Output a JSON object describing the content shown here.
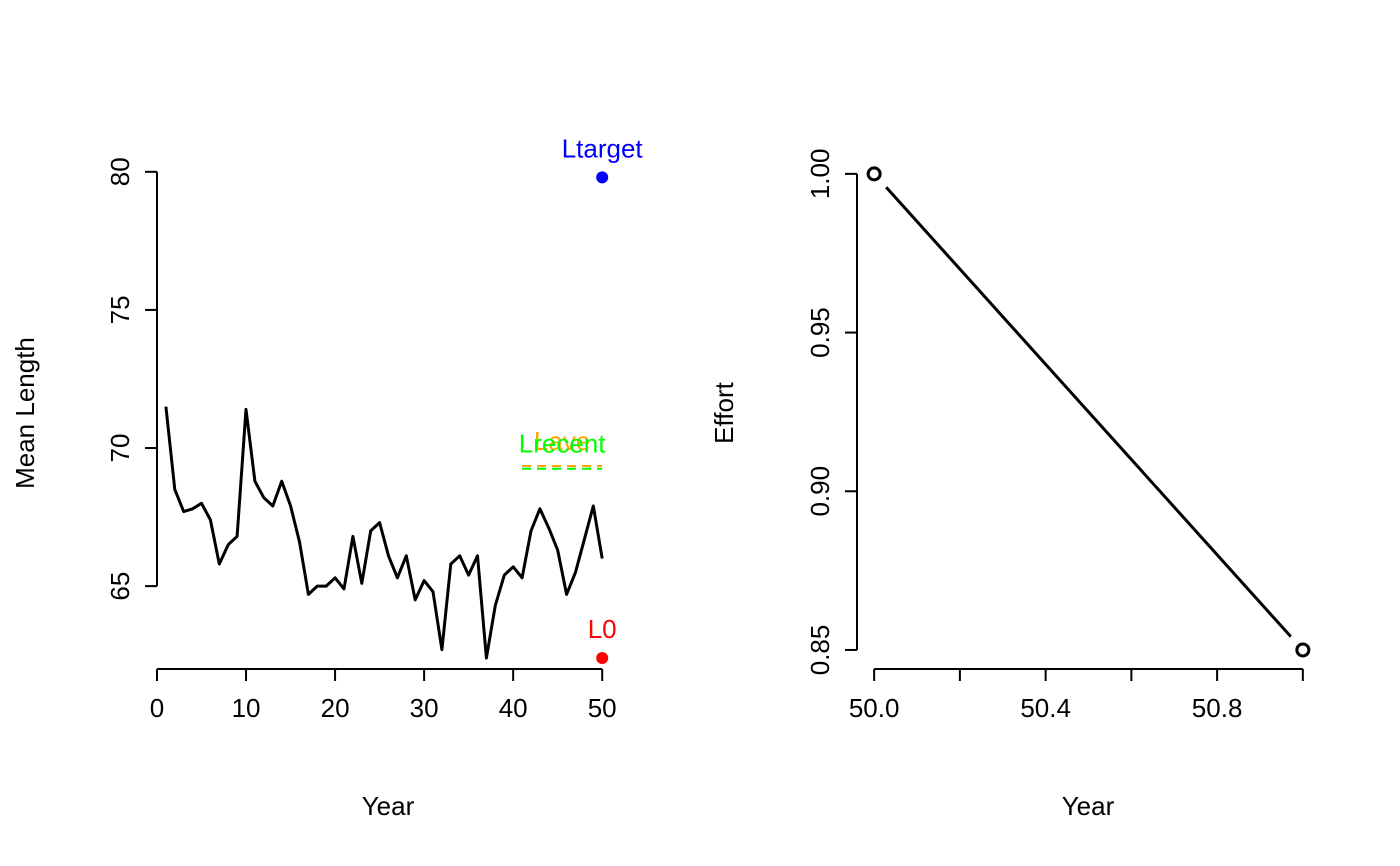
{
  "chart_data": [
    {
      "type": "line",
      "xlabel": "Year",
      "ylabel": "Mean Length",
      "xlim": [
        0,
        52
      ],
      "ylim": [
        62,
        80.5
      ],
      "xticks": [
        0,
        10,
        20,
        30,
        40,
        50
      ],
      "yticks": [
        65,
        70,
        75,
        80
      ],
      "series": [
        {
          "color": "#000000",
          "x": [
            1,
            2,
            3,
            4,
            5,
            6,
            7,
            8,
            9,
            10,
            11,
            12,
            13,
            14,
            15,
            16,
            17,
            18,
            19,
            20,
            21,
            22,
            23,
            24,
            25,
            26,
            27,
            28,
            29,
            30,
            31,
            32,
            33,
            34,
            35,
            36,
            37,
            38,
            39,
            40,
            41,
            42,
            43,
            44,
            45,
            46,
            47,
            48,
            49,
            50
          ],
          "values": [
            71.5,
            68.5,
            67.7,
            67.8,
            68.0,
            67.4,
            65.8,
            66.5,
            66.8,
            71.4,
            68.8,
            68.2,
            67.9,
            68.8,
            67.9,
            66.6,
            64.7,
            65.0,
            65.0,
            65.3,
            64.9,
            66.8,
            65.1,
            67.0,
            67.3,
            66.1,
            65.3,
            66.1,
            64.5,
            65.2,
            64.8,
            62.7,
            65.8,
            66.1,
            65.4,
            66.1,
            62.4,
            64.3,
            65.4,
            65.7,
            65.3,
            67.0,
            67.8,
            67.1,
            66.3,
            64.7,
            65.5,
            66.7,
            67.9,
            66.0
          ]
        }
      ],
      "reference_points": [
        {
          "label": "Ltarget",
          "x": 50,
          "y": 79.8,
          "color": "#0000FF"
        },
        {
          "label": "L0",
          "x": 50,
          "y": 62.4,
          "color": "#FF0000"
        }
      ],
      "reference_lines": [
        {
          "label": "Lave",
          "x_start": 41,
          "x_end": 50,
          "y": 69.35,
          "color": "#FFA500",
          "style": "dashed"
        },
        {
          "label": "Lrecent",
          "x_start": 41,
          "x_end": 50,
          "y": 69.25,
          "color": "#00FF00",
          "style": "dashed"
        }
      ]
    },
    {
      "type": "line",
      "xlabel": "Year",
      "ylabel": "Effort",
      "xlim": [
        49.96,
        51.04
      ],
      "ylim": [
        0.844,
        1.005
      ],
      "xticks": [
        50.0,
        50.2,
        50.4,
        50.6,
        50.8,
        51.0
      ],
      "xtick_labels": [
        "50.0",
        "",
        "50.4",
        "",
        "50.8",
        ""
      ],
      "yticks": [
        0.85,
        0.9,
        0.95,
        1.0
      ],
      "ytick_labels": [
        "0.85",
        "0.90",
        "0.95",
        "1.00"
      ],
      "series": [
        {
          "color": "#000000",
          "style": "both",
          "x": [
            50,
            51
          ],
          "values": [
            1.0,
            0.85
          ]
        }
      ]
    }
  ]
}
